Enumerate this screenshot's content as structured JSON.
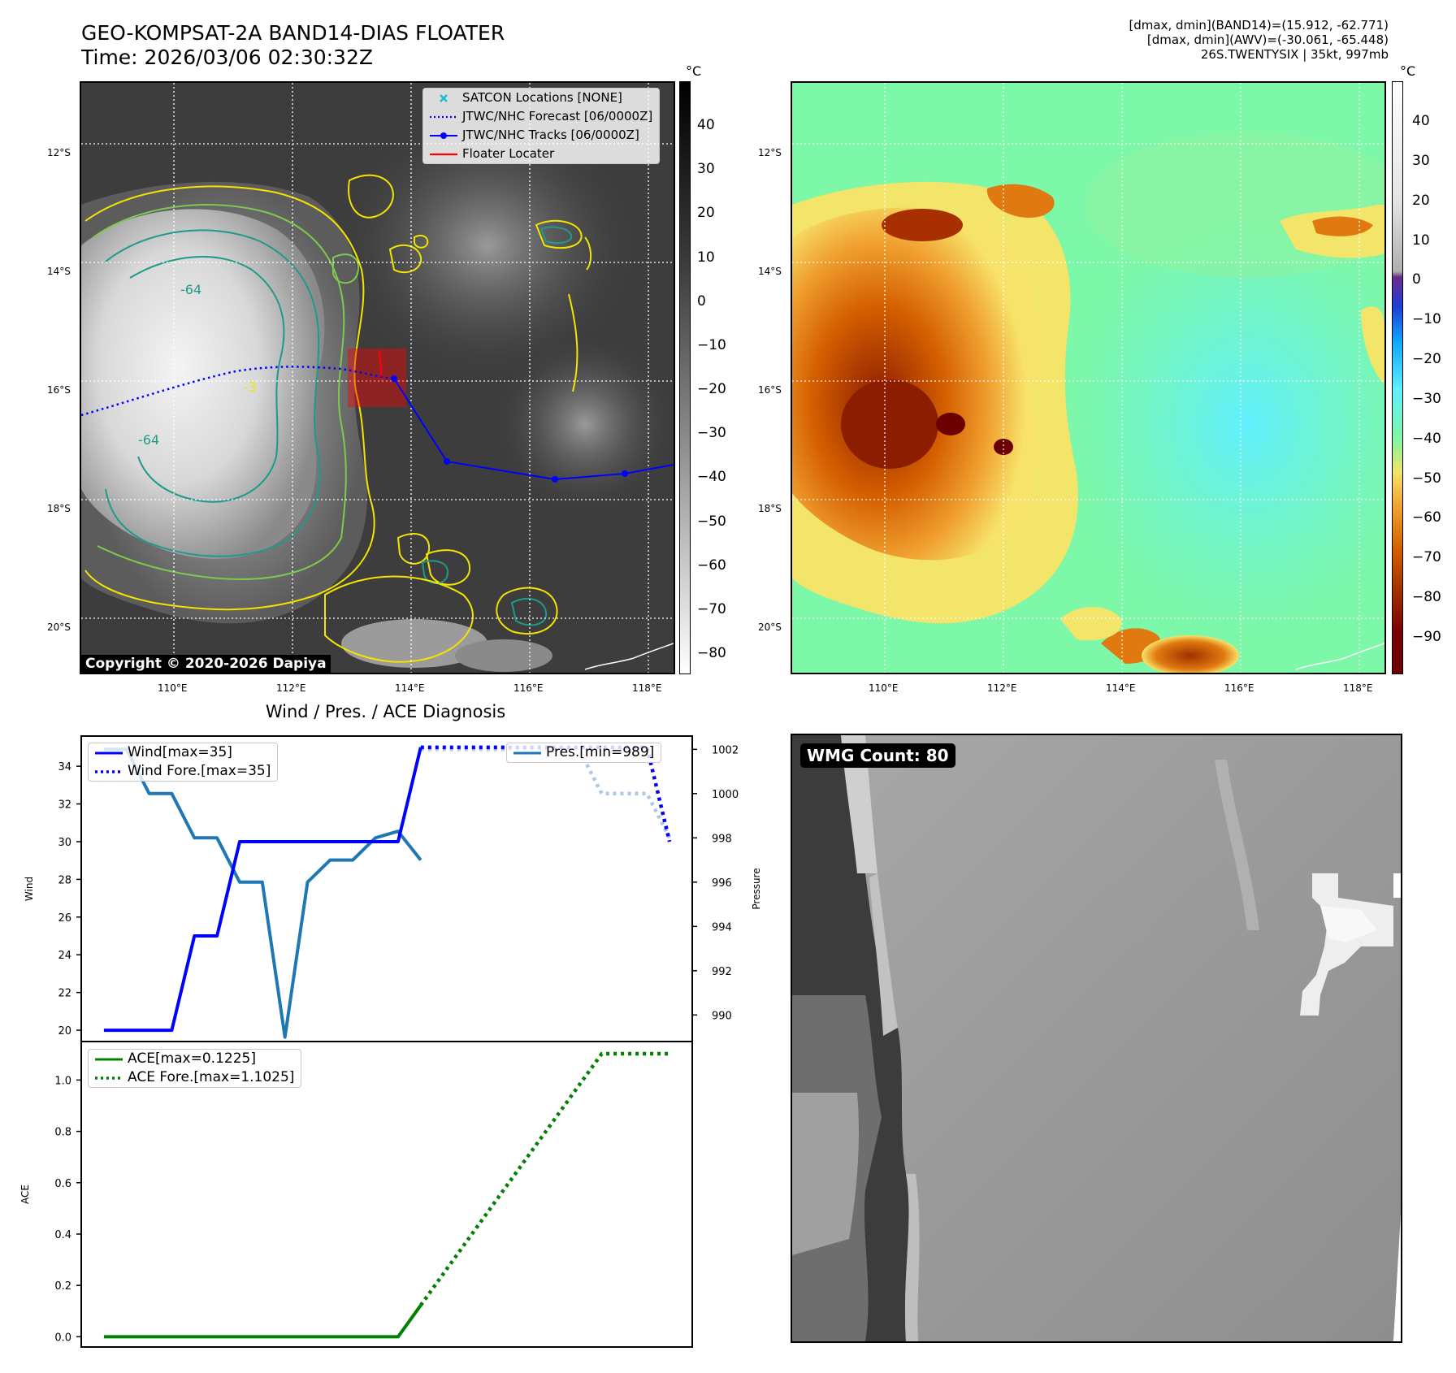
{
  "header": {
    "title_line1": "GEO-KOMPSAT-2A BAND14-DIAS FLOATER",
    "title_line2": "Time: 2026/03/06 02:30:32Z",
    "info_line1": "[dmax, dmin](BAND14)=(15.912, -62.771)",
    "info_line2": "[dmax, dmin](AWV)=(-30.061, -65.448)",
    "info_line3": "26S.TWENTYSIX | 35kt, 997mb"
  },
  "maps": {
    "lat_labels": [
      "12°S",
      "14°S",
      "16°S",
      "18°S",
      "20°S"
    ],
    "lon_labels": [
      "110°E",
      "112°E",
      "114°E",
      "116°E",
      "118°E"
    ],
    "contour_labels": [
      "-64",
      "-64",
      "-3"
    ],
    "copyright": "Copyright © 2020-2026 Dapiya",
    "legend": [
      "SATCON Locations [NONE]",
      "JTWC/NHC Forecast [06/0000Z]",
      "JTWC/NHC Tracks [06/0000Z]",
      "Floater Locater"
    ],
    "colors": {
      "forecast": "#0000ff",
      "track": "#0000ff",
      "floater": "#ff0000",
      "satcon": "#17becf",
      "contour_yellow": "#f2e400",
      "contour_green": "#7ec850",
      "contour_teal": "#1f9a8a"
    }
  },
  "colorbar1": {
    "unit": "°C",
    "ticks": [
      "40",
      "30",
      "20",
      "10",
      "0",
      "−10",
      "−20",
      "−30",
      "−40",
      "−50",
      "−60",
      "−70",
      "−80"
    ]
  },
  "colorbar2": {
    "unit": "°C",
    "ticks": [
      "40",
      "30",
      "20",
      "10",
      "0",
      "−10",
      "−20",
      "−30",
      "−40",
      "−50",
      "−60",
      "−70",
      "−80",
      "−90"
    ]
  },
  "wmg": {
    "label": "WMG Count: 80"
  },
  "chart_data": [
    {
      "type": "line",
      "title": "Wind / Pres. / ACE Diagnosis",
      "ylabel": "Wind",
      "y2label": "Pressure",
      "ylim": [
        19.4,
        35.6
      ],
      "y2lim": [
        988.8,
        1002.6
      ],
      "yticks": [
        20,
        22,
        24,
        26,
        28,
        30,
        32,
        34
      ],
      "y2ticks": [
        990,
        992,
        994,
        996,
        998,
        1000,
        1002
      ],
      "x": [
        0,
        1,
        2,
        3,
        4,
        5,
        6,
        7,
        8,
        9,
        10,
        11,
        12,
        13,
        14,
        15,
        16,
        17,
        18,
        19,
        20,
        21,
        22,
        23,
        24,
        25
      ],
      "xlim": [
        -1,
        26
      ],
      "series": [
        {
          "name": "Wind[max=35]",
          "axis": "left",
          "style": "solid",
          "color": "#0000ff",
          "x": [
            0,
            1,
            2,
            3,
            4,
            5,
            6,
            7,
            8,
            9,
            10,
            11,
            12,
            13,
            14
          ],
          "values": [
            20,
            20,
            20,
            20,
            25,
            25,
            30,
            30,
            30,
            30,
            30,
            30,
            30,
            30,
            35
          ]
        },
        {
          "name": "Wind Fore.[max=35]",
          "axis": "left",
          "style": "dotted",
          "color": "#0000ff",
          "x": [
            14,
            15,
            16,
            17,
            18,
            19,
            20,
            21,
            22,
            23,
            24,
            25
          ],
          "values": [
            35,
            35,
            35,
            35,
            35,
            35,
            35,
            35,
            35,
            35,
            35,
            30
          ]
        },
        {
          "name": "Pres.[min=989]",
          "axis": "right",
          "style": "solid",
          "color": "#1f77b4",
          "x": [
            0,
            1,
            2,
            3,
            4,
            5,
            6,
            7,
            8,
            9,
            10,
            11,
            12,
            13,
            14
          ],
          "values": [
            1002,
            1002,
            1000,
            1000,
            998,
            998,
            996,
            996,
            989,
            996,
            997,
            997,
            998,
            998.3,
            997
          ],
          "fore_x": [
            14,
            15,
            16,
            17,
            18,
            19,
            20,
            21,
            22,
            23,
            24,
            25
          ],
          "fore_values": [
            1002,
            1002,
            1002,
            1002,
            1002,
            1002,
            1002,
            1002,
            1000,
            1000,
            1000,
            998
          ]
        }
      ]
    },
    {
      "type": "line",
      "ylabel": "ACE",
      "ylim": [
        -0.04,
        1.15
      ],
      "yticks": [
        0.0,
        0.2,
        0.4,
        0.6,
        0.8,
        1.0
      ],
      "x": [
        0,
        1,
        2,
        3,
        4,
        5,
        6,
        7,
        8,
        9,
        10,
        11,
        12,
        13,
        14,
        15,
        16,
        17,
        18,
        19,
        20,
        21,
        22,
        23,
        24,
        25
      ],
      "xlim": [
        -1,
        26
      ],
      "series": [
        {
          "name": "ACE[max=0.1225]",
          "style": "solid",
          "color": "#008000",
          "x": [
            0,
            1,
            2,
            3,
            4,
            5,
            6,
            7,
            8,
            9,
            10,
            11,
            12,
            13,
            14
          ],
          "values": [
            0,
            0,
            0,
            0,
            0,
            0,
            0,
            0,
            0,
            0,
            0,
            0,
            0,
            0,
            0.1225
          ]
        },
        {
          "name": "ACE Fore.[max=1.1025]",
          "style": "dotted",
          "color": "#008000",
          "x": [
            14,
            15,
            16,
            17,
            18,
            19,
            20,
            21,
            22,
            23,
            24,
            25
          ],
          "values": [
            0.1225,
            0.245,
            0.3675,
            0.49,
            0.6125,
            0.735,
            0.8575,
            0.98,
            1.1025,
            1.1025,
            1.1025,
            1.1025
          ]
        }
      ]
    }
  ]
}
